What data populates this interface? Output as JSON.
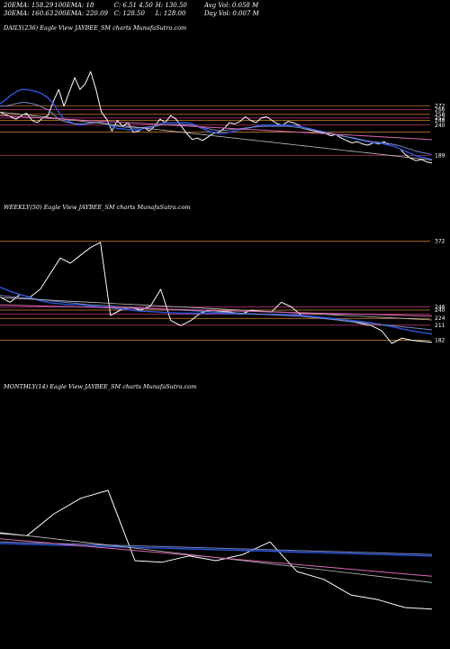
{
  "header": {
    "row1": [
      "20EMA: 158.29",
      "100EMA: 18",
      "C: 6.51 4.50",
      "H: 130.50",
      "Avg Vol: 0.058 M"
    ],
    "row2": [
      "30EMA: 160.63",
      "200EMA: 220.09",
      "C: 128.50",
      "L: 128.00",
      "Day Vol: 0.007 M"
    ]
  },
  "panels": {
    "daily": {
      "title": "DAILY(236) Eagle   View  JAYBEE_SM charts MunafaSutra.com"
    },
    "weekly": {
      "title": "WEEKLY(50) Eagle   View  JAYBEE_SM charts MunafaSutra.com"
    },
    "monthly": {
      "title": "MONTHLY(14) Eagle   View  JAYBEE_SM charts MunafaSutra.com"
    }
  },
  "colors": {
    "background": "#000000",
    "price": "#ffffff",
    "ema20": "#2b56d9",
    "ema30": "#7a86c8",
    "ema100": "#c0c0c0",
    "ema200": "#d86ab0",
    "level": "#d98a2a",
    "levelAlt": "#c83c78"
  },
  "chart_data": [
    {
      "type": "line",
      "name": "daily",
      "ylim": [
        150,
        390
      ],
      "levels": [
        {
          "value": 272,
          "label": "272"
        },
        {
          "value": 266,
          "label": "266"
        },
        {
          "value": 258,
          "label": "258"
        },
        {
          "value": 252,
          "label": "252"
        },
        {
          "value": 248,
          "label": "248"
        },
        {
          "value": 240,
          "label": "240"
        },
        {
          "value": 228,
          "label": ""
        },
        {
          "value": 189,
          "label": "189"
        }
      ],
      "series": [
        {
          "role": "price",
          "values": [
            262,
            258,
            254,
            250,
            256,
            260,
            248,
            244,
            252,
            256,
            280,
            300,
            272,
            296,
            320,
            300,
            310,
            330,
            300,
            262,
            250,
            230,
            248,
            238,
            244,
            228,
            230,
            236,
            230,
            238,
            250,
            244,
            256,
            250,
            238,
            226,
            216,
            218,
            214,
            220,
            226,
            228,
            234,
            244,
            242,
            246,
            254,
            248,
            244,
            252,
            254,
            248,
            242,
            240,
            246,
            244,
            240,
            234,
            232,
            230,
            228,
            226,
            222,
            224,
            218,
            214,
            210,
            212,
            208,
            206,
            210,
            208,
            212,
            206,
            204,
            200,
            190,
            184,
            180,
            182,
            178,
            176
          ]
        },
        {
          "role": "ema20",
          "values": [
            276,
            282,
            290,
            296,
            300,
            300,
            298,
            296,
            292,
            286,
            276,
            262,
            250,
            246,
            242,
            240,
            242,
            244,
            244,
            244,
            242,
            238,
            234,
            234,
            232,
            232,
            232,
            234,
            236,
            238,
            242,
            244,
            244,
            244,
            244,
            244,
            242,
            238,
            234,
            230,
            228,
            226,
            226,
            228,
            230,
            232,
            234,
            236,
            238,
            240,
            240,
            240,
            240,
            240,
            240,
            240,
            238,
            236,
            234,
            232,
            230,
            228,
            226,
            224,
            222,
            220,
            218,
            216,
            214,
            212,
            210,
            210,
            208,
            206,
            204,
            200,
            196,
            192,
            188,
            186,
            184,
            182
          ]
        },
        {
          "role": "ema30",
          "values": [
            272,
            272,
            274,
            276,
            278,
            278,
            276,
            274,
            270,
            266,
            258,
            250,
            246,
            244,
            242,
            242,
            242,
            243,
            244,
            244,
            242,
            240,
            238,
            237,
            236,
            235,
            235,
            236,
            237,
            238,
            240,
            241,
            241,
            241,
            241,
            241,
            240,
            238,
            236,
            234,
            232,
            231,
            231,
            232,
            233,
            234,
            235,
            236,
            237,
            238,
            238,
            238,
            238,
            238,
            238,
            237,
            236,
            234,
            233,
            231,
            229,
            228,
            226,
            224,
            222,
            220,
            219,
            217,
            215,
            213,
            212,
            211,
            210,
            209,
            207,
            205,
            202,
            199,
            196,
            194,
            192,
            190
          ]
        },
        {
          "role": "ema100",
          "values": [
            262,
            261,
            260,
            259,
            258,
            257,
            256,
            255,
            254,
            253,
            252,
            251,
            250,
            249,
            248,
            247,
            246,
            245,
            244,
            243,
            242,
            241,
            240,
            239,
            238,
            237,
            236,
            235,
            234,
            233,
            232,
            231,
            230,
            229,
            228,
            227,
            226,
            225,
            224,
            223,
            222,
            221,
            220,
            219,
            218,
            217,
            216,
            215,
            214,
            213,
            212,
            211,
            210,
            209,
            208,
            207,
            206,
            205,
            204,
            203,
            202,
            201,
            200,
            199,
            198,
            197,
            196,
            195,
            194,
            193,
            192,
            191,
            190,
            189,
            188,
            187,
            186,
            185,
            184,
            183,
            182,
            181
          ]
        },
        {
          "role": "ema200",
          "values": [
            256,
            255.5,
            255,
            254.5,
            254,
            253.5,
            253,
            252.5,
            252,
            251.5,
            251,
            250.5,
            250,
            249.5,
            249,
            248.5,
            248,
            247.5,
            247,
            246.5,
            246,
            245.5,
            245,
            244.5,
            244,
            243.5,
            243,
            242.5,
            242,
            241.5,
            241,
            240.5,
            240,
            239.5,
            239,
            238.5,
            238,
            237.5,
            237,
            236.5,
            236,
            235.5,
            235,
            234.5,
            234,
            233.5,
            233,
            232.5,
            232,
            231.5,
            231,
            230.5,
            230,
            229.5,
            229,
            228.5,
            228,
            227.5,
            227,
            226.5,
            226,
            225.5,
            225,
            224.5,
            224,
            223.5,
            223,
            222.5,
            222,
            221.5,
            221,
            220.5,
            220,
            219.5,
            219,
            218.5,
            218,
            217.5,
            217,
            216.5,
            216,
            215.5
          ]
        }
      ]
    },
    {
      "type": "line",
      "name": "weekly",
      "ylim": [
        150,
        420
      ],
      "levels": [
        {
          "value": 372,
          "label": "372"
        },
        {
          "value": 246,
          "label": "246"
        },
        {
          "value": 240,
          "label": "240"
        },
        {
          "value": 232,
          "label": ""
        },
        {
          "value": 224,
          "label": "224"
        },
        {
          "value": 211,
          "label": "211"
        },
        {
          "value": 182,
          "label": "182"
        }
      ],
      "series": [
        {
          "role": "price",
          "values": [
            265,
            255,
            270,
            265,
            280,
            310,
            340,
            330,
            345,
            360,
            370,
            230,
            240,
            245,
            240,
            248,
            280,
            220,
            210,
            220,
            235,
            240,
            238,
            236,
            232,
            240,
            238,
            236,
            255,
            246,
            230,
            228,
            226,
            224,
            220,
            218,
            214,
            210,
            200,
            176,
            186,
            182,
            180,
            178
          ]
        },
        {
          "role": "ema20",
          "values": [
            284,
            276,
            270,
            264,
            258,
            254,
            252,
            250,
            250,
            248,
            246,
            244,
            242,
            240,
            238,
            237,
            236,
            235,
            234,
            234,
            234,
            234,
            234,
            233,
            233,
            232,
            232,
            232,
            232,
            231,
            230,
            228,
            226,
            224,
            222,
            220,
            218,
            215,
            212,
            208,
            204,
            200,
            197,
            194
          ]
        },
        {
          "role": "ema30",
          "values": [
            268,
            266,
            264,
            262,
            260,
            258,
            256,
            254,
            252,
            250,
            249,
            248,
            246,
            245,
            244,
            243,
            242,
            241,
            240,
            239,
            238,
            237,
            236,
            235,
            234,
            233,
            232,
            231,
            230,
            229,
            228,
            226,
            224,
            222,
            220,
            218,
            216,
            214,
            212,
            210,
            208,
            206,
            204,
            202
          ]
        },
        {
          "role": "ema100",
          "values": [
            264,
            263,
            262,
            261,
            260,
            259,
            258,
            257,
            256,
            255,
            254,
            253,
            252,
            251,
            250,
            249,
            248,
            247,
            246,
            245,
            244,
            243,
            242,
            241,
            240,
            239,
            238,
            237,
            236,
            235,
            234,
            233,
            232,
            231,
            230,
            229,
            228,
            227,
            226,
            225,
            224,
            223,
            222,
            221
          ]
        },
        {
          "role": "ema200",
          "values": [
            250,
            249.5,
            249,
            248.5,
            248,
            247.5,
            247,
            246.5,
            246,
            245.5,
            245,
            244.5,
            244,
            243.5,
            243,
            242.5,
            242,
            241.5,
            241,
            240.5,
            240,
            239.5,
            239,
            238.5,
            238,
            237.5,
            237,
            236.5,
            236,
            235.5,
            235,
            234.5,
            234,
            233.5,
            233,
            232.5,
            232,
            231.5,
            231,
            230.5,
            230,
            229.5,
            229,
            228.5
          ]
        }
      ]
    },
    {
      "type": "line",
      "name": "monthly",
      "ylim": [
        150,
        450
      ],
      "levels": [],
      "series": [
        {
          "role": "price",
          "values": [
            275,
            272,
            300,
            320,
            330,
            240,
            238,
            246,
            240,
            248,
            264,
            226,
            216,
            196,
            190,
            180,
            178
          ]
        },
        {
          "role": "ema20",
          "values": [
            262,
            261,
            260,
            259,
            258,
            257,
            256,
            255,
            254,
            253,
            252,
            251,
            250,
            249,
            248,
            247,
            246
          ]
        },
        {
          "role": "ema30",
          "values": [
            264,
            263,
            262,
            261,
            260,
            259,
            258,
            257,
            256,
            255,
            254,
            253,
            252,
            251,
            250,
            249,
            248
          ]
        },
        {
          "role": "ema100",
          "values": [
            276,
            272,
            268,
            264,
            260,
            256,
            252,
            248,
            244,
            240,
            236,
            232,
            228,
            224,
            220,
            216,
            212
          ]
        },
        {
          "role": "ema200",
          "values": [
            268,
            265,
            262,
            259,
            256,
            253,
            250,
            247,
            244,
            241,
            238,
            235,
            232,
            229,
            226,
            223,
            220
          ]
        }
      ]
    }
  ]
}
